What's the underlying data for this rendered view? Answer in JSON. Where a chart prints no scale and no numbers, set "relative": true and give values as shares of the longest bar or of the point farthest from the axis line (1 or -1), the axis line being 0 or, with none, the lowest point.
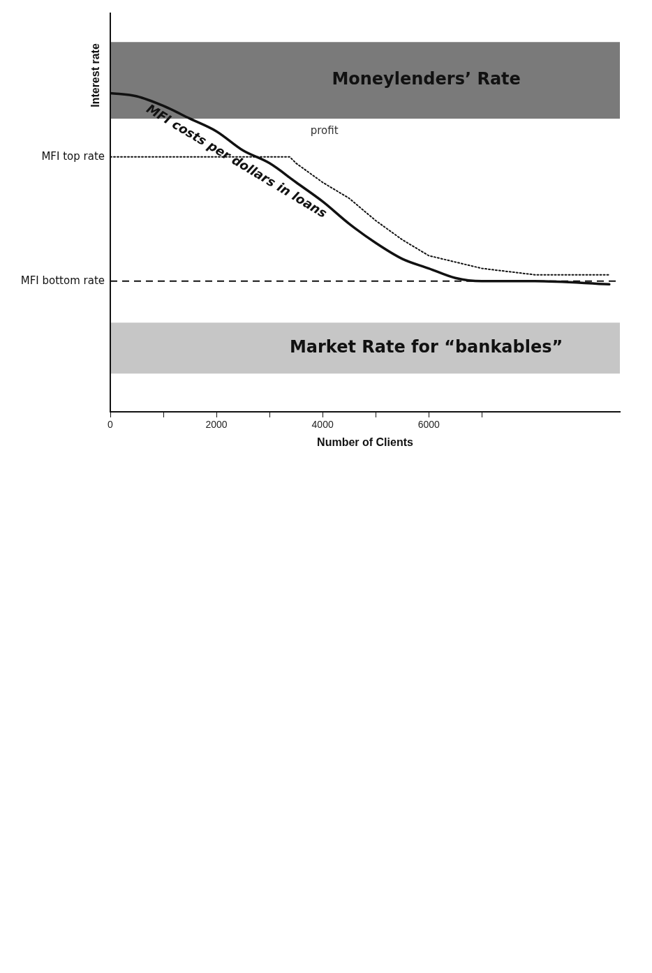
{
  "chart_data": {
    "type": "line",
    "xlabel": "Number of Clients",
    "ylabel": "Interest rate",
    "relative": true,
    "xlim": [
      0,
      9600
    ],
    "xticks": [
      0,
      {
        "value": 1000,
        "label": null
      },
      2000,
      {
        "value": 3000,
        "label": null
      },
      4000,
      {
        "value": 5000,
        "label": null
      },
      6000,
      {
        "value": 7000,
        "label": null
      }
    ],
    "legend": false,
    "series": [
      {
        "name": "MFI costs per dollars in loans",
        "color": "#111111",
        "line_style": "solid",
        "x": [
          0,
          500,
          1000,
          1500,
          2000,
          2500,
          3000,
          3500,
          4000,
          4500,
          5000,
          5500,
          6000,
          6500,
          7000,
          8000,
          9400
        ],
        "values": [
          1,
          0.99,
          0.96,
          0.92,
          0.88,
          0.82,
          0.78,
          0.72,
          0.66,
          0.59,
          0.53,
          0.48,
          0.45,
          0.42,
          0.41,
          0.41,
          0.4
        ]
      },
      {
        "color": "#111111",
        "line_style": "dotted",
        "x": [
          0,
          3380,
          3500,
          4000,
          4500,
          5000,
          5500,
          6000,
          6500,
          7000,
          8000,
          9400
        ],
        "values": [
          0.8,
          0.8,
          0.78,
          0.72,
          0.67,
          0.6,
          0.54,
          0.49,
          0.47,
          0.45,
          0.43,
          0.43
        ]
      }
    ],
    "bands": [
      {
        "axis": "y",
        "from": 0.92,
        "to": 1.16,
        "label": "Moneylenders’ Rate",
        "color": "#7a7a7a"
      },
      {
        "axis": "y",
        "from": 0.12,
        "to": 0.28,
        "label": "Market Rate for “bankables”",
        "color": "#c6c6c6"
      }
    ],
    "ref_lines": [
      {
        "axis": "y",
        "value": 0.41,
        "label": "MFI bottom rate",
        "line_style": "dashed",
        "color": "#111111"
      }
    ],
    "annotations": [
      "profit",
      "MFI top rate"
    ]
  }
}
